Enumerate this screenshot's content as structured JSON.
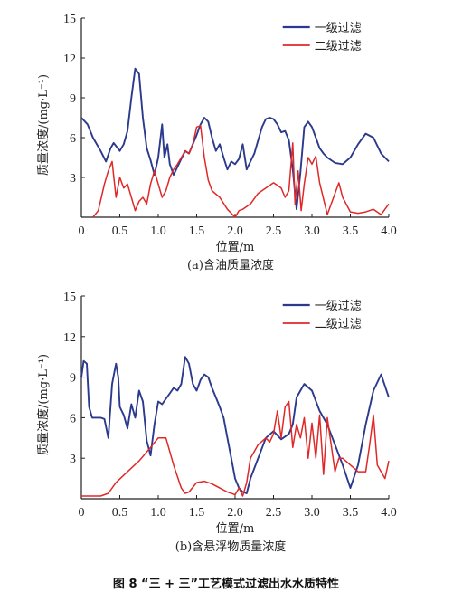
{
  "figure_title": "图 8 “三 + 三”工艺模式过滤出水水质特性",
  "colors": {
    "series1": "#2b3a8c",
    "series2": "#e02828"
  },
  "chart_data": [
    {
      "type": "line",
      "caption": "(a)含油质量浓度",
      "xlabel": "位置/m",
      "ylabel": "质量浓度/(mg·L⁻¹)",
      "xlim": [
        0,
        4.0
      ],
      "ylim": [
        0,
        15
      ],
      "xticks": [
        0,
        0.5,
        1.0,
        1.5,
        2.0,
        2.5,
        3.0,
        3.5,
        4.0
      ],
      "xtick_labels": [
        "0",
        "0.5",
        "1.0",
        "1.5",
        "2.0",
        "2.5",
        "3.0",
        "3.5",
        "4.0"
      ],
      "yticks": [
        3,
        6,
        9,
        12,
        15
      ],
      "ytick_labels": [
        "3",
        "6",
        "9",
        "12",
        "15"
      ],
      "legend_position": "top-right",
      "series": [
        {
          "name": "一级过滤",
          "x": [
            0,
            0.08,
            0.15,
            0.25,
            0.32,
            0.38,
            0.42,
            0.5,
            0.55,
            0.6,
            0.65,
            0.7,
            0.75,
            0.8,
            0.85,
            0.9,
            0.95,
            1.0,
            1.05,
            1.08,
            1.12,
            1.15,
            1.2,
            1.25,
            1.3,
            1.35,
            1.4,
            1.45,
            1.5,
            1.55,
            1.6,
            1.65,
            1.7,
            1.75,
            1.8,
            1.85,
            1.9,
            1.95,
            2.0,
            2.05,
            2.1,
            2.15,
            2.2,
            2.25,
            2.3,
            2.35,
            2.4,
            2.45,
            2.5,
            2.55,
            2.6,
            2.65,
            2.7,
            2.75,
            2.8,
            2.85,
            2.9,
            2.95,
            3.0,
            3.05,
            3.1,
            3.15,
            3.2,
            3.3,
            3.4,
            3.5,
            3.6,
            3.7,
            3.8,
            3.9,
            4.0
          ],
          "y": [
            7.5,
            7.0,
            6.0,
            5.0,
            4.2,
            5.2,
            5.6,
            5.0,
            5.5,
            6.5,
            9.0,
            11.2,
            10.8,
            7.5,
            5.2,
            4.3,
            3.2,
            4.5,
            7.0,
            4.5,
            5.5,
            4.0,
            3.2,
            3.8,
            4.4,
            5.0,
            4.8,
            5.5,
            6.2,
            7.0,
            7.5,
            7.2,
            6.0,
            5.0,
            5.5,
            4.5,
            3.6,
            4.2,
            4.0,
            4.4,
            5.5,
            3.6,
            4.2,
            4.8,
            5.8,
            6.8,
            7.4,
            7.5,
            7.4,
            7.0,
            6.4,
            6.5,
            5.8,
            3.6,
            0.6,
            3.4,
            6.8,
            7.2,
            6.8,
            6.0,
            5.2,
            4.8,
            4.5,
            4.1,
            4.0,
            4.5,
            5.5,
            6.3,
            6.0,
            4.8,
            4.2
          ]
        },
        {
          "name": "二级过滤",
          "x": [
            0.15,
            0.22,
            0.3,
            0.35,
            0.4,
            0.45,
            0.5,
            0.55,
            0.6,
            0.65,
            0.7,
            0.75,
            0.8,
            0.85,
            0.9,
            0.95,
            1.0,
            1.05,
            1.1,
            1.15,
            1.2,
            1.25,
            1.3,
            1.35,
            1.4,
            1.45,
            1.5,
            1.55,
            1.6,
            1.65,
            1.7,
            1.8,
            1.9,
            2.0,
            2.05,
            2.1,
            2.2,
            2.3,
            2.4,
            2.5,
            2.55,
            2.6,
            2.65,
            2.7,
            2.75,
            2.78,
            2.82,
            2.86,
            2.9,
            2.95,
            3.0,
            3.05,
            3.1,
            3.2,
            3.3,
            3.35,
            3.4,
            3.5,
            3.6,
            3.7,
            3.8,
            3.9,
            4.0
          ],
          "y": [
            0,
            0.5,
            2.5,
            3.5,
            4.2,
            1.5,
            3.0,
            2.2,
            2.5,
            1.5,
            0.5,
            1.2,
            1.5,
            1.0,
            2.5,
            3.5,
            2.5,
            1.5,
            2.0,
            3.0,
            3.6,
            4.0,
            4.5,
            5.0,
            4.8,
            5.5,
            6.8,
            6.9,
            4.5,
            2.8,
            2.0,
            1.5,
            0.6,
            0.0,
            0.5,
            0.6,
            1.0,
            1.8,
            2.2,
            2.6,
            2.4,
            2.2,
            1.5,
            2.0,
            5.6,
            1.0,
            3.5,
            0.5,
            2.5,
            4.5,
            4.0,
            4.6,
            2.6,
            0.2,
            1.8,
            2.6,
            1.5,
            0.4,
            0.3,
            0.4,
            0.6,
            0.2,
            1.0
          ]
        }
      ]
    },
    {
      "type": "line",
      "caption": "(b)含悬浮物质量浓度",
      "xlabel": "位置/m",
      "ylabel": "质量浓度/(mg·L⁻¹)",
      "xlim": [
        0,
        4.0
      ],
      "ylim": [
        0,
        15
      ],
      "xticks": [
        0,
        0.5,
        1.0,
        1.5,
        2.0,
        2.5,
        3.0,
        3.5,
        4.0
      ],
      "xtick_labels": [
        "0",
        "0.5",
        "1.0",
        "1.5",
        "2.0",
        "2.5",
        "3.0",
        "3.5",
        "4.0"
      ],
      "yticks": [
        3,
        6,
        9,
        12,
        15
      ],
      "ytick_labels": [
        "3",
        "6",
        "9",
        "12",
        "15"
      ],
      "legend_position": "top-right",
      "series": [
        {
          "name": "一级过滤",
          "x": [
            0,
            0.03,
            0.07,
            0.1,
            0.14,
            0.2,
            0.25,
            0.3,
            0.35,
            0.4,
            0.45,
            0.48,
            0.5,
            0.55,
            0.6,
            0.65,
            0.7,
            0.75,
            0.8,
            0.85,
            0.9,
            0.95,
            1.0,
            1.05,
            1.1,
            1.15,
            1.2,
            1.25,
            1.3,
            1.35,
            1.4,
            1.45,
            1.5,
            1.55,
            1.6,
            1.65,
            1.7,
            1.75,
            1.8,
            1.85,
            1.9,
            1.95,
            2.0,
            2.05,
            2.1,
            2.15,
            2.2,
            2.3,
            2.4,
            2.5,
            2.6,
            2.7,
            2.75,
            2.8,
            2.9,
            3.0,
            3.1,
            3.2,
            3.3,
            3.4,
            3.5,
            3.6,
            3.7,
            3.8,
            3.9,
            4.0
          ],
          "y": [
            9.0,
            10.2,
            10.0,
            6.8,
            6.0,
            6.0,
            6.0,
            5.9,
            4.5,
            8.5,
            10.0,
            9.0,
            6.8,
            6.2,
            5.2,
            7.0,
            6.0,
            8.0,
            7.2,
            4.3,
            3.2,
            5.5,
            7.2,
            7.0,
            7.4,
            7.8,
            8.2,
            8.0,
            8.5,
            10.5,
            10.0,
            8.5,
            8.0,
            8.8,
            9.2,
            9.0,
            8.2,
            7.5,
            6.8,
            6.0,
            4.5,
            3.0,
            1.5,
            0.8,
            0.5,
            0.4,
            1.5,
            3.0,
            4.5,
            5.0,
            4.4,
            4.8,
            5.5,
            7.5,
            8.5,
            8.0,
            6.5,
            5.5,
            4.0,
            2.5,
            0.8,
            2.5,
            5.5,
            8.0,
            9.2,
            7.5
          ]
        },
        {
          "name": "二级过滤",
          "x": [
            0,
            0.1,
            0.25,
            0.35,
            0.45,
            0.6,
            0.75,
            0.9,
            1.0,
            1.1,
            1.2,
            1.3,
            1.35,
            1.4,
            1.5,
            1.6,
            1.7,
            1.8,
            1.9,
            2.0,
            2.05,
            2.1,
            2.15,
            2.2,
            2.3,
            2.4,
            2.45,
            2.5,
            2.55,
            2.6,
            2.65,
            2.7,
            2.75,
            2.8,
            2.85,
            2.9,
            2.95,
            3.0,
            3.05,
            3.1,
            3.15,
            3.2,
            3.3,
            3.35,
            3.4,
            3.5,
            3.6,
            3.7,
            3.75,
            3.8,
            3.85,
            3.9,
            3.95,
            4.0
          ],
          "y": [
            0.2,
            0.2,
            0.2,
            0.4,
            1.2,
            2.0,
            2.8,
            3.8,
            4.5,
            4.5,
            2.5,
            0.8,
            0.4,
            0.5,
            1.2,
            1.3,
            1.1,
            0.8,
            0.5,
            0.3,
            0.8,
            0.2,
            1.2,
            3.0,
            4.0,
            4.5,
            4.2,
            4.8,
            6.5,
            4.5,
            6.8,
            7.2,
            3.8,
            5.5,
            4.5,
            6.0,
            3.0,
            5.6,
            3.0,
            6.2,
            1.8,
            6.0,
            2.0,
            3.0,
            3.0,
            2.5,
            2.0,
            2.0,
            4.0,
            6.2,
            2.5,
            2.0,
            1.5,
            2.8
          ]
        }
      ]
    }
  ]
}
